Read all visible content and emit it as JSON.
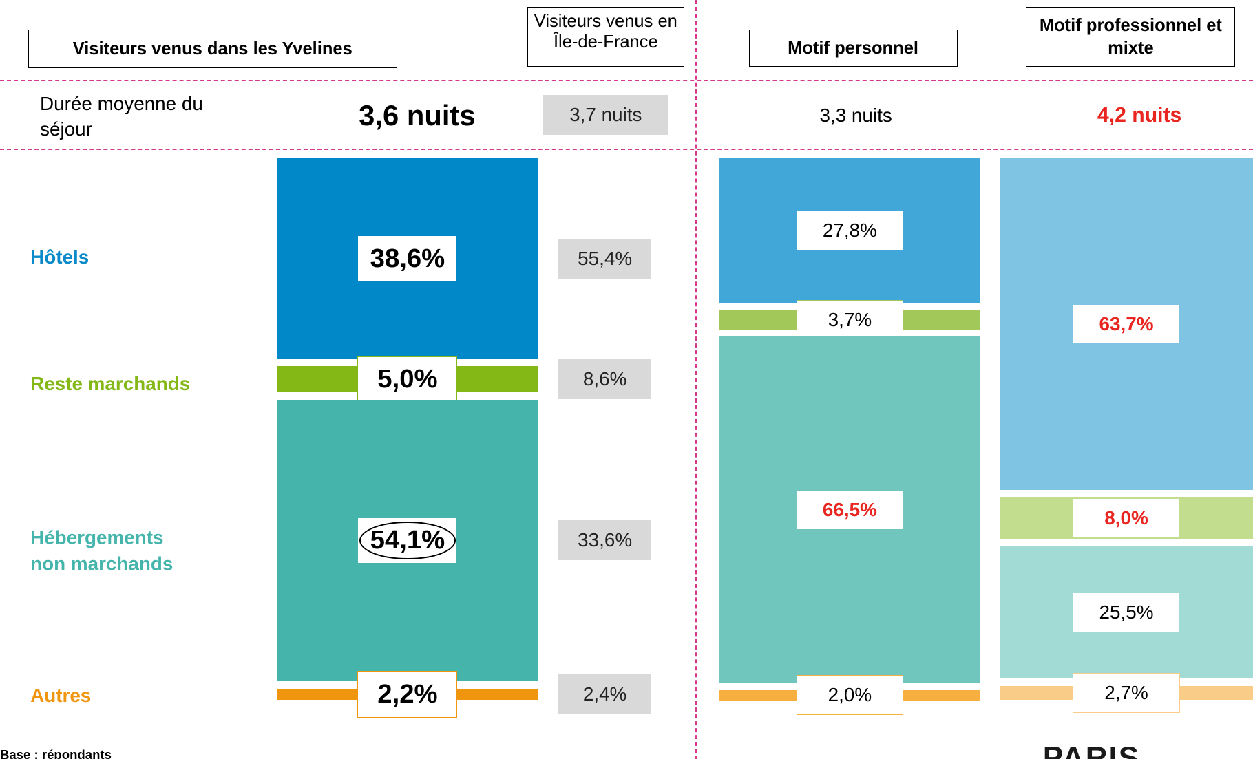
{
  "chart_data": {
    "type": "stacked_column",
    "stay_label": "Durée moyenne du séjour",
    "categories": [
      "Hôtels",
      "Reste marchands",
      "Hébergements non marchands",
      "Autres"
    ],
    "category_colors": [
      "#0a8ac8",
      "#84b817",
      "#45b5ac",
      "#f0960e"
    ],
    "columns": [
      {
        "name": "Visiteurs venus dans les Yvelines",
        "stay": "3,6 nuits",
        "values": [
          38.6,
          5.0,
          54.1,
          2.2
        ],
        "value_labels": [
          "38,6%",
          "5,0%",
          "54,1%",
          "2,2%"
        ],
        "colors": [
          "#0088c8",
          "#84b817",
          "#45b5ac",
          "#f0960e"
        ],
        "label_colors": [
          "#000000",
          "#000000",
          "#000000",
          "#000000"
        ],
        "stay_color": "#000000",
        "circled": 2
      },
      {
        "name": "Visiteurs venus en Île-de-France",
        "stay": "3,7 nuits",
        "values": [
          55.4,
          8.6,
          33.6,
          2.4
        ],
        "value_labels": [
          "55,4%",
          "8,6%",
          "33,6%",
          "2,4%"
        ],
        "colors": [
          "#d9d9d9",
          "#d9d9d9",
          "#d9d9d9",
          "#d9d9d9"
        ],
        "label_colors": [
          "#222222",
          "#222222",
          "#222222",
          "#222222"
        ],
        "stay_color": "#222222"
      },
      {
        "name": "Motif personnel",
        "stay": "3,3 nuits",
        "values": [
          27.8,
          3.7,
          66.5,
          2.0
        ],
        "value_labels": [
          "27,8%",
          "3,7%",
          "66,5%",
          "2,0%"
        ],
        "colors": [
          "#41a6d8",
          "#a3c85a",
          "#70c5bd",
          "#f7b040"
        ],
        "label_colors": [
          "#000000",
          "#000000",
          "#e8251f",
          "#000000"
        ],
        "stay_color": "#000000"
      },
      {
        "name": "Motif professionnel et mixte",
        "stay": "4,2 nuits",
        "values": [
          63.7,
          8.0,
          25.5,
          2.7
        ],
        "value_labels": [
          "63,7%",
          "8,0%",
          "25,5%",
          "2,7%"
        ],
        "colors": [
          "#80c4e4",
          "#c2dd8e",
          "#a2dbd5",
          "#f9cd88"
        ],
        "label_colors": [
          "#e8251f",
          "#e8251f",
          "#000000",
          "#000000"
        ],
        "stay_color": "#e8251f"
      }
    ]
  },
  "footnote": "Base : répondants",
  "logo": "PARIS"
}
